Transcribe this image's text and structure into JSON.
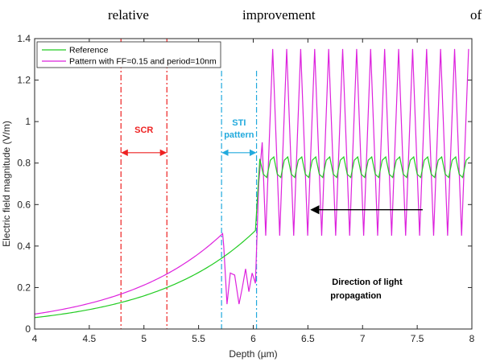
{
  "page_text": {
    "word_1": "relative",
    "word_2": "improvement",
    "word_3": "of"
  },
  "colors": {
    "reference": "#22cc22",
    "pattern": "#dd22dd",
    "scr": "#ee2222",
    "sti": "#22aadd",
    "axis": "#262626",
    "arrow": "#000000"
  },
  "chart_data": {
    "type": "line",
    "xlabel": "Depth (µm)",
    "ylabel": "Electric field magnitude (V/m)",
    "xlim": [
      4,
      8
    ],
    "ylim": [
      0,
      1.4
    ],
    "x_ticks": [
      "4",
      "4.5",
      "5",
      "5.5",
      "6",
      "6.5",
      "7",
      "7.5",
      "8"
    ],
    "y_ticks": [
      "0",
      "0.2",
      "0.4",
      "0.6",
      "0.8",
      "1",
      "1.2",
      "1.4"
    ],
    "grid": false,
    "legend": "top-left",
    "series": [
      {
        "name": "Reference",
        "color": "#22cc22",
        "smooth_region": {
          "x_start": 4.0,
          "x_end": 6.03,
          "y_start": 0.055,
          "y_end": 0.48
        },
        "jump": {
          "x": 6.06,
          "y": 0.82
        },
        "oscillation": {
          "x_start": 6.06,
          "x_end": 8.0,
          "period": 0.128,
          "y_min": 0.72,
          "y_max": 0.84
        }
      },
      {
        "name": "Pattern with FF=0.15 and period=10nm",
        "color": "#dd22dd",
        "smooth_region": {
          "x_start": 4.0,
          "x_end": 5.73,
          "y_start": 0.072,
          "y_end": 0.465
        },
        "sti_region": {
          "x": [
            5.73,
            5.76,
            5.79,
            5.83,
            5.87,
            5.9,
            5.93,
            5.96,
            5.99,
            6.02,
            6.05
          ],
          "y": [
            0.4,
            0.12,
            0.27,
            0.26,
            0.12,
            0.2,
            0.29,
            0.18,
            0.27,
            0.22,
            0.7
          ]
        },
        "oscillation": {
          "x_start": 6.05,
          "x_end": 8.0,
          "period": 0.128,
          "y_min": 0.45,
          "y_max": 1.35
        }
      }
    ],
    "annotations": {
      "scr_label": "SCR",
      "scr_lines": [
        4.79,
        5.21
      ],
      "scr_arrow_y": 0.85,
      "sti_label_1": "STI",
      "sti_label_2": "pattern",
      "sti_lines": [
        5.71,
        6.03
      ],
      "sti_arrow_y": 0.85,
      "direction_label_1": "Direction of light",
      "direction_label_2": "propagation",
      "direction_arrow": {
        "x_from": 7.55,
        "x_to": 6.53,
        "y": 0.575
      }
    }
  }
}
